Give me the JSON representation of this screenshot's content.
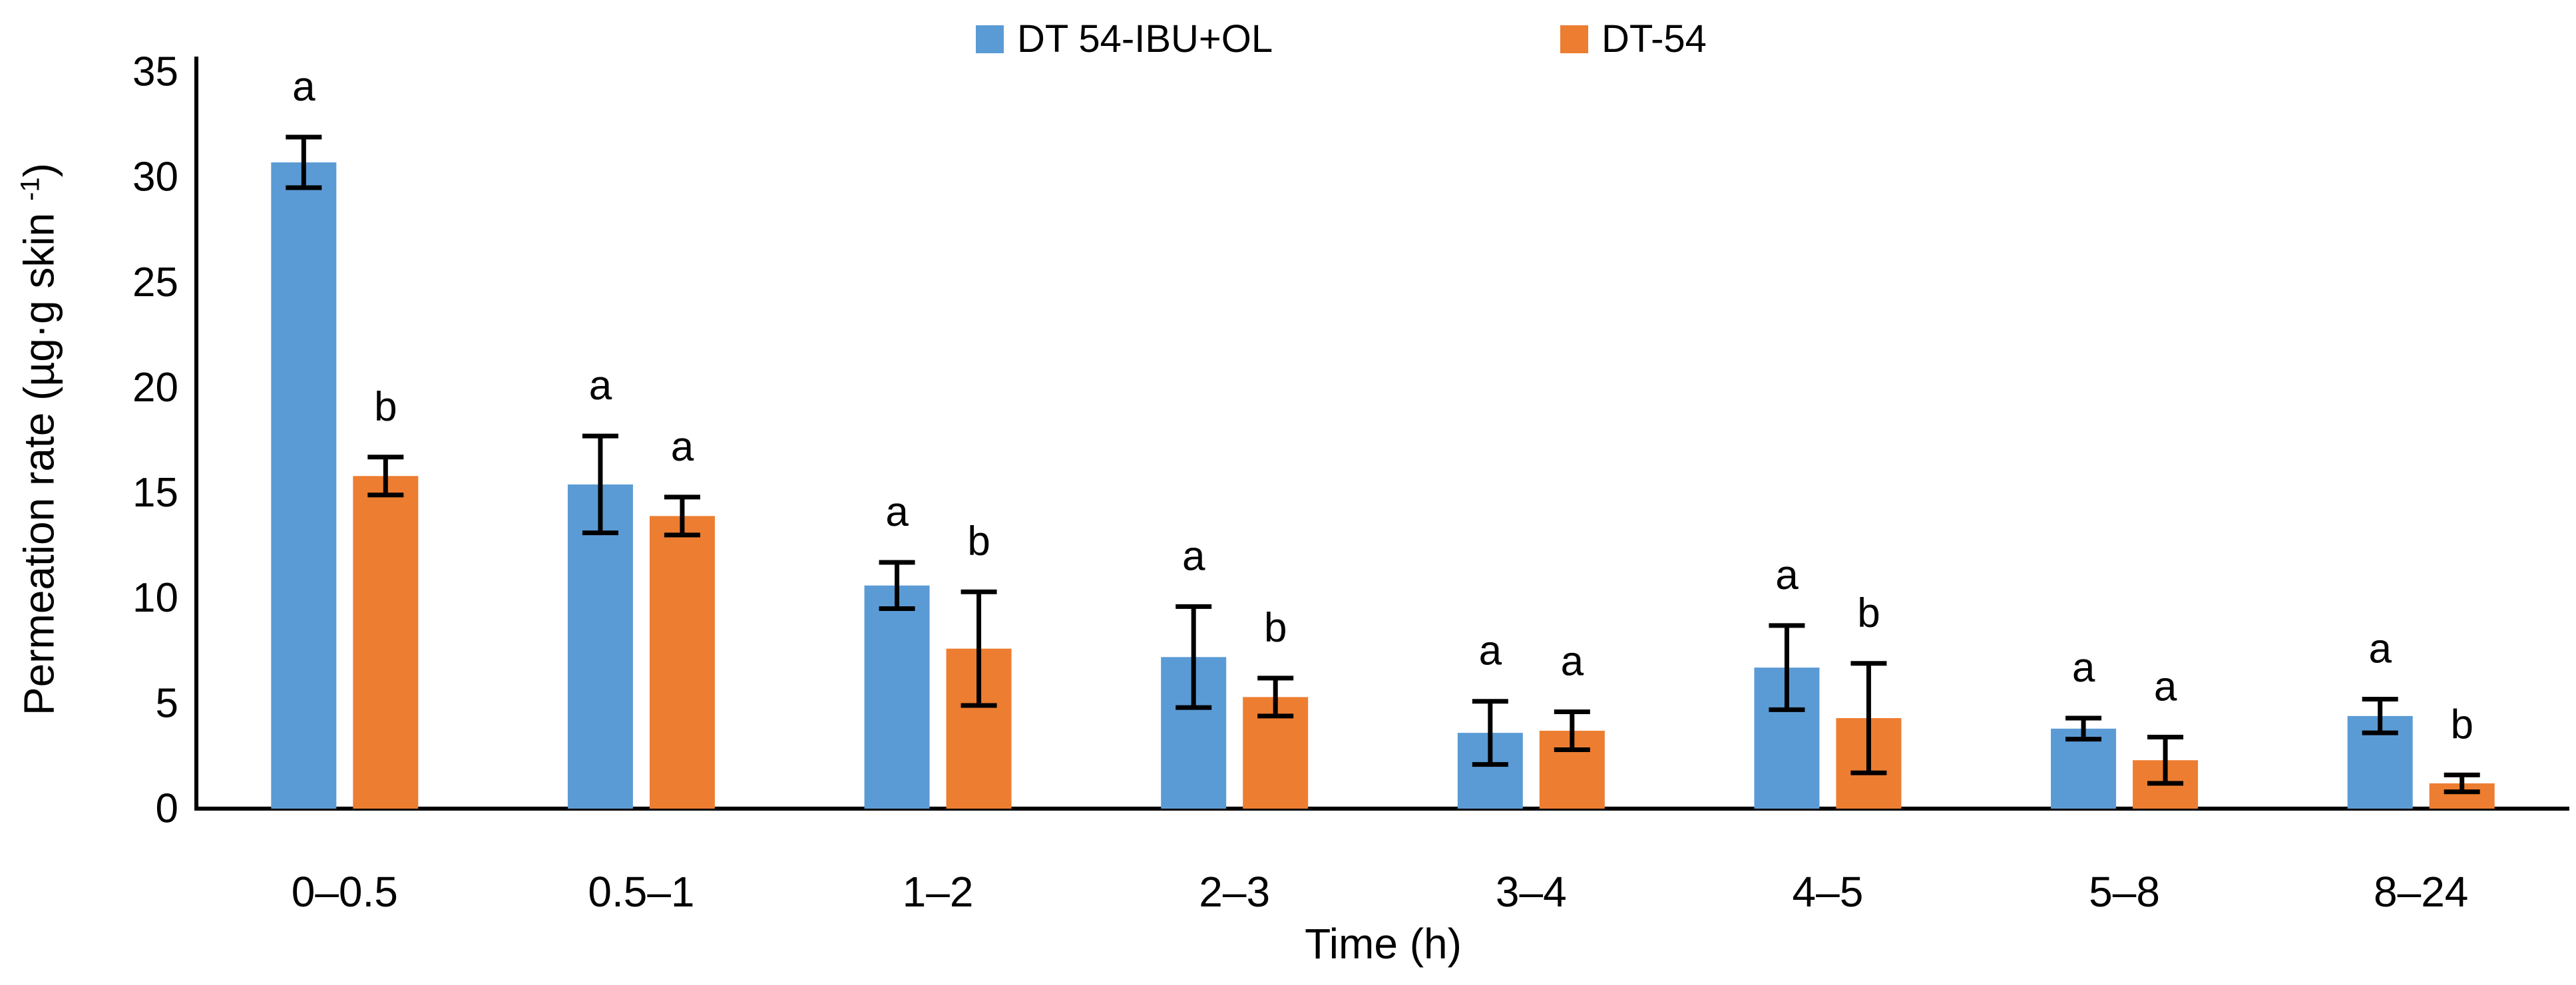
{
  "legend": {
    "items": [
      {
        "label": "DT 54-IBU+OL",
        "color": "#5B9BD5"
      },
      {
        "label": "DT-54",
        "color": "#ED7D31"
      }
    ]
  },
  "y_axis": {
    "title_main": "Permeation rate (µg·g skin ",
    "title_sup": "-1",
    "title_close": ")"
  },
  "x_axis": {
    "title": "Time (h)"
  },
  "chart_data": {
    "type": "bar",
    "title": "",
    "categories": [
      "0–0.5",
      "0.5–1",
      "1–2",
      "2–3",
      "3–4",
      "4–5",
      "5–8",
      "8–24"
    ],
    "series": [
      {
        "name": "DT 54-IBU+OL",
        "color": "#5B9BD5",
        "values": [
          30.7,
          15.4,
          10.6,
          7.2,
          3.6,
          6.7,
          3.8,
          4.4
        ],
        "errors": [
          1.2,
          2.3,
          1.1,
          2.4,
          1.5,
          2.0,
          0.5,
          0.8
        ],
        "sig_letters": [
          "a",
          "a",
          "a",
          "a",
          "a",
          "a",
          "a",
          "a"
        ]
      },
      {
        "name": "DT-54",
        "color": "#ED7D31",
        "values": [
          15.8,
          13.9,
          7.6,
          5.3,
          3.7,
          4.3,
          2.3,
          1.2
        ],
        "errors": [
          0.9,
          0.9,
          2.7,
          0.9,
          0.9,
          2.6,
          1.1,
          0.4
        ],
        "sig_letters": [
          "b",
          "a",
          "b",
          "b",
          "a",
          "b",
          "a",
          "b"
        ]
      }
    ],
    "xlabel": "Time (h)",
    "ylabel": "Permeation rate (µg·g skin -1)",
    "ylim": [
      0,
      35
    ],
    "ytick_step": 5,
    "grid": false,
    "legend_position": "top",
    "error_bars": true
  }
}
